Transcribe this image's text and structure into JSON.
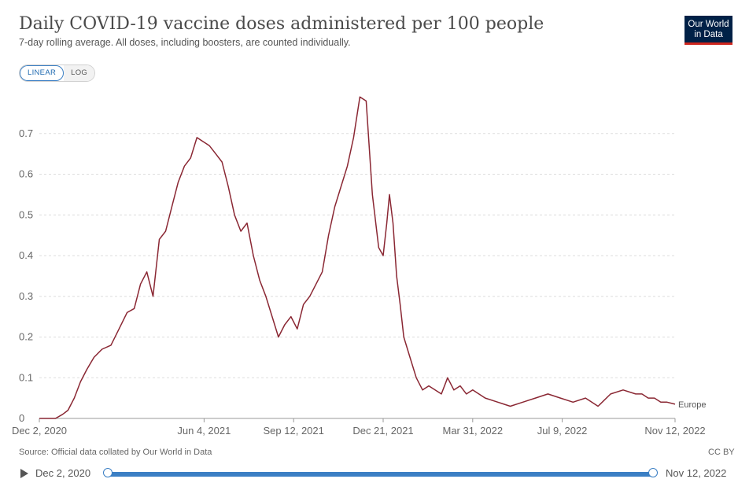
{
  "header": {
    "title": "Daily COVID-19 vaccine doses administered per 100 people",
    "subtitle": "7-day rolling average. All doses, including boosters, are counted individually.",
    "logo_line1": "Our World",
    "logo_line2": "in Data"
  },
  "controls": {
    "linear_label": "LINEAR",
    "log_label": "LOG",
    "active": "linear"
  },
  "footer": {
    "source": "Source: Official data collated by Our World in Data",
    "license": "CC BY"
  },
  "timeline": {
    "start_label": "Dec 2, 2020",
    "end_label": "Nov 12, 2022"
  },
  "colors": {
    "series": "#8a2733",
    "accent": "#3b7fc4",
    "logo_bg": "#002147",
    "logo_bar": "#ce261e"
  },
  "chart_data": {
    "type": "line",
    "title": "Daily COVID-19 vaccine doses administered per 100 people",
    "subtitle": "7-day rolling average. All doses, including boosters, are counted individually.",
    "xlabel": "",
    "ylabel": "",
    "x_ticks": [
      "Dec 2, 2020",
      "Jun 4, 2021",
      "Sep 12, 2021",
      "Dec 21, 2021",
      "Mar 31, 2022",
      "Jul 9, 2022",
      "Nov 12, 2022"
    ],
    "y_ticks": [
      "0",
      "0.1",
      "0.2",
      "0.3",
      "0.4",
      "0.5",
      "0.6",
      "0.7"
    ],
    "ylim": [
      0,
      0.8
    ],
    "xlim": [
      "2020-12-02",
      "2022-11-12"
    ],
    "grid": "horizontal dashed",
    "series": [
      {
        "name": "Europe",
        "x": [
          "2020-12-02",
          "2020-12-20",
          "2020-12-28",
          "2021-01-03",
          "2021-01-10",
          "2021-01-17",
          "2021-01-24",
          "2021-02-01",
          "2021-02-10",
          "2021-02-20",
          "2021-03-01",
          "2021-03-10",
          "2021-03-18",
          "2021-03-25",
          "2021-04-01",
          "2021-04-08",
          "2021-04-15",
          "2021-04-22",
          "2021-04-29",
          "2021-05-06",
          "2021-05-13",
          "2021-05-20",
          "2021-05-27",
          "2021-06-03",
          "2021-06-10",
          "2021-06-17",
          "2021-06-24",
          "2021-07-01",
          "2021-07-08",
          "2021-07-15",
          "2021-07-22",
          "2021-07-29",
          "2021-08-05",
          "2021-08-12",
          "2021-08-19",
          "2021-08-26",
          "2021-09-02",
          "2021-09-09",
          "2021-09-16",
          "2021-09-23",
          "2021-09-30",
          "2021-10-07",
          "2021-10-14",
          "2021-10-21",
          "2021-10-28",
          "2021-11-04",
          "2021-11-11",
          "2021-11-18",
          "2021-11-25",
          "2021-12-02",
          "2021-12-09",
          "2021-12-16",
          "2021-12-21",
          "2021-12-25",
          "2021-12-28",
          "2022-01-01",
          "2022-01-05",
          "2022-01-09",
          "2022-01-13",
          "2022-01-20",
          "2022-01-27",
          "2022-02-03",
          "2022-02-10",
          "2022-02-17",
          "2022-02-24",
          "2022-03-03",
          "2022-03-10",
          "2022-03-17",
          "2022-03-24",
          "2022-03-31",
          "2022-04-14",
          "2022-04-28",
          "2022-05-12",
          "2022-05-26",
          "2022-06-09",
          "2022-06-23",
          "2022-07-07",
          "2022-07-21",
          "2022-08-04",
          "2022-08-18",
          "2022-09-01",
          "2022-09-15",
          "2022-09-29",
          "2022-10-06",
          "2022-10-13",
          "2022-10-20",
          "2022-10-27",
          "2022-11-03",
          "2022-11-12"
        ],
        "values": [
          0.0,
          0.0,
          0.01,
          0.02,
          0.05,
          0.09,
          0.12,
          0.15,
          0.17,
          0.18,
          0.22,
          0.26,
          0.27,
          0.33,
          0.36,
          0.3,
          0.44,
          0.46,
          0.52,
          0.58,
          0.62,
          0.64,
          0.69,
          0.68,
          0.67,
          0.65,
          0.63,
          0.57,
          0.5,
          0.46,
          0.48,
          0.4,
          0.34,
          0.3,
          0.25,
          0.2,
          0.23,
          0.25,
          0.22,
          0.28,
          0.3,
          0.33,
          0.36,
          0.45,
          0.52,
          0.57,
          0.62,
          0.69,
          0.79,
          0.78,
          0.55,
          0.42,
          0.4,
          0.48,
          0.55,
          0.48,
          0.35,
          0.28,
          0.2,
          0.15,
          0.1,
          0.07,
          0.08,
          0.07,
          0.06,
          0.1,
          0.07,
          0.08,
          0.06,
          0.07,
          0.05,
          0.04,
          0.03,
          0.04,
          0.05,
          0.06,
          0.05,
          0.04,
          0.05,
          0.03,
          0.06,
          0.07,
          0.06,
          0.06,
          0.05,
          0.05,
          0.04,
          0.04,
          0.035
        ]
      }
    ]
  }
}
